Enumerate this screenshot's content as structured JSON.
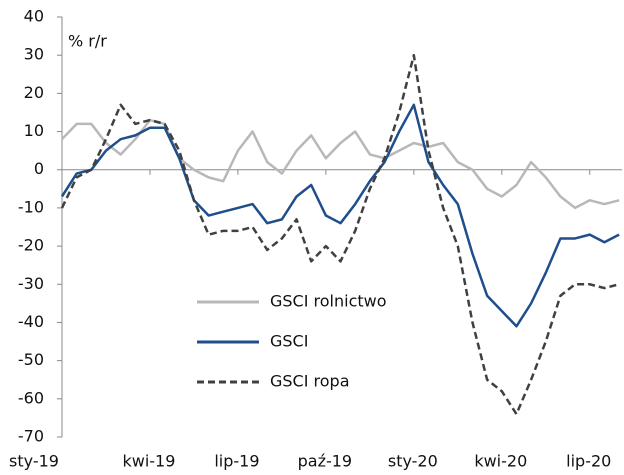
{
  "chart_data": {
    "type": "line",
    "annotation": "% r/r",
    "x": [
      0,
      0.5,
      1,
      1.5,
      2,
      2.5,
      3,
      3.5,
      4,
      4.5,
      5,
      5.5,
      6,
      6.5,
      7,
      7.5,
      8,
      8.5,
      9,
      9.5,
      10,
      10.5,
      11,
      11.5,
      12,
      12.5,
      13,
      13.5,
      14,
      14.5,
      15,
      15.5,
      16,
      16.5,
      17,
      17.5,
      18,
      18.5,
      19
    ],
    "series": [
      {
        "name": "GSCI rolnictwo",
        "color": "#b8b8b8",
        "dash": "solid",
        "values": [
          8,
          12,
          12,
          7,
          4,
          8,
          13,
          12,
          3,
          0,
          -2,
          -3,
          5,
          10,
          2,
          -1,
          5,
          9,
          3,
          7,
          10,
          4,
          3,
          5,
          7,
          6,
          7,
          2,
          0,
          -5,
          -7,
          -4,
          2,
          -2,
          -7,
          -10,
          -8,
          -9,
          -8
        ]
      },
      {
        "name": "GSCI",
        "color": "#1f4e8c",
        "dash": "solid",
        "values": [
          -7,
          -1,
          0,
          5,
          8,
          9,
          11,
          11,
          3,
          -8,
          -12,
          -11,
          -10,
          -9,
          -14,
          -13,
          -7,
          -4,
          -12,
          -14,
          -9,
          -3,
          2,
          10,
          17,
          2,
          -4,
          -9,
          -22,
          -33,
          -37,
          -41,
          -35,
          -27,
          -18,
          -18,
          -17,
          -19,
          -17
        ]
      },
      {
        "name": "GSCI ropa",
        "color": "#404040",
        "dash": "dashed",
        "values": [
          -10,
          -2,
          0,
          8,
          17,
          12,
          13,
          12,
          5,
          -8,
          -17,
          -16,
          -16,
          -15,
          -21,
          -18,
          -13,
          -24,
          -20,
          -24,
          -16,
          -5,
          3,
          15,
          30,
          5,
          -10,
          -20,
          -40,
          -55,
          -58,
          -64,
          -55,
          -45,
          -33,
          -30,
          -30,
          -31,
          -30
        ]
      }
    ],
    "xlim": [
      0,
      19.1
    ],
    "xticks": [
      {
        "value": 0,
        "label": "sty-19"
      },
      {
        "value": 3,
        "label": "kwi-19"
      },
      {
        "value": 6,
        "label": "lip-19"
      },
      {
        "value": 9,
        "label": "paź-19"
      },
      {
        "value": 12,
        "label": "sty-20"
      },
      {
        "value": 15,
        "label": "kwi-20"
      },
      {
        "value": 18,
        "label": "lip-20"
      }
    ],
    "ylim": [
      -70,
      40
    ],
    "yticks": [
      -70,
      -60,
      -50,
      -40,
      -30,
      -20,
      -10,
      0,
      10,
      20,
      30,
      40
    ],
    "grid": false,
    "legend": "center"
  }
}
